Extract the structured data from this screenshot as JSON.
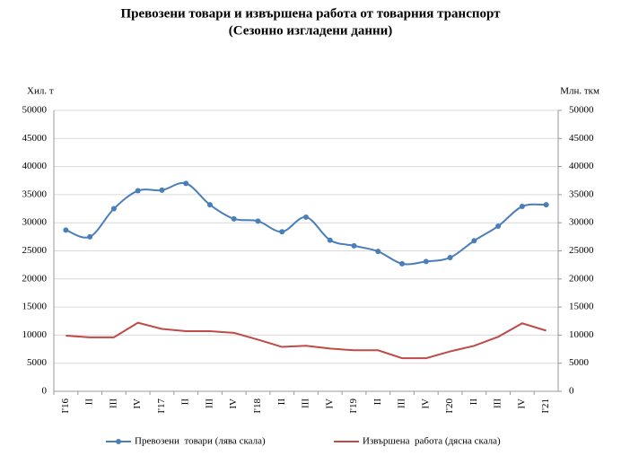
{
  "chart_data": {
    "type": "line",
    "title": "Превозени товари и извършена работа от товарния транспорт",
    "subtitle": "(Сезонно изгладени данни)",
    "ylabel": "Хил. т",
    "y2label": "Млн. ткм",
    "categories": [
      "I'16",
      "II",
      "III",
      "IV",
      "I'17",
      "II",
      "III",
      "IV",
      "I'18",
      "II",
      "III",
      "IV",
      "I'19",
      "II",
      "III",
      "IV",
      "I'20",
      "II",
      "III",
      "IV",
      "I'21"
    ],
    "series": [
      {
        "name": "Превозени  товари (лява скала)",
        "color": "#4a7ebb",
        "marker": "circle",
        "smooth": true,
        "values": [
          28700,
          27500,
          32500,
          35700,
          35800,
          37000,
          33200,
          30700,
          30300,
          28400,
          31000,
          26900,
          25900,
          24900,
          22700,
          23100,
          23800,
          26800,
          29400,
          32900,
          33200
        ]
      },
      {
        "name": "Извършена  работа (дясна скала)",
        "color": "#be4b48",
        "axis": "y2",
        "smooth": false,
        "values": [
          9900,
          9600,
          9600,
          12200,
          11100,
          10700,
          10700,
          10400,
          9200,
          7900,
          8100,
          7600,
          7300,
          7300,
          5900,
          5900,
          7100,
          8100,
          9700,
          12100,
          10800
        ]
      }
    ],
    "ylim": [
      0,
      50000
    ],
    "yticks": [
      0,
      5000,
      10000,
      15000,
      20000,
      25000,
      30000,
      35000,
      40000,
      45000,
      50000
    ],
    "y2lim": [
      0,
      50000
    ],
    "y2ticks": [
      0,
      5000,
      10000,
      15000,
      20000,
      25000,
      30000,
      35000,
      40000,
      45000,
      50000
    ],
    "grid": true,
    "legend": "bottom"
  }
}
